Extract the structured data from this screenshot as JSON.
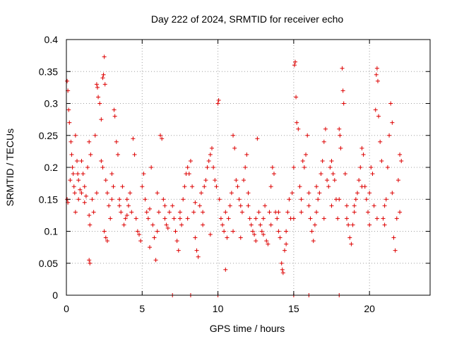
{
  "chart_data": {
    "type": "scatter",
    "title": "Day 222 of 2024, SRMTID for receiver echo",
    "xlabel": "GPS time / hours",
    "ylabel": "SRMTID / TECUs",
    "xlim": [
      0,
      24
    ],
    "ylim": [
      0,
      0.4
    ],
    "xticks": [
      0,
      5,
      10,
      15,
      20
    ],
    "xtick_labels": [
      "0",
      "5",
      "10",
      "15",
      "20"
    ],
    "yticks": [
      0,
      0.05,
      0.1,
      0.15,
      0.2,
      0.25,
      0.3,
      0.35,
      0.4
    ],
    "ytick_labels": [
      "0",
      "0.05",
      "0.1",
      "0.15",
      "0.2",
      "0.25",
      "0.3",
      "0.35",
      "0.4"
    ],
    "grid": true,
    "marker": "plus",
    "marker_color": "#dd0000",
    "series": [
      {
        "name": "echo",
        "points": [
          [
            0.05,
            0.335
          ],
          [
            0.1,
            0.32
          ],
          [
            0.15,
            0.29
          ],
          [
            0.2,
            0.27
          ],
          [
            0.05,
            0.15
          ],
          [
            0.1,
            0.145
          ],
          [
            0.3,
            0.24
          ],
          [
            0.35,
            0.22
          ],
          [
            0.4,
            0.2
          ],
          [
            0.25,
            0.18
          ],
          [
            0.45,
            0.19
          ],
          [
            0.5,
            0.17
          ],
          [
            0.55,
            0.16
          ],
          [
            0.6,
            0.25
          ],
          [
            0.7,
            0.21
          ],
          [
            0.75,
            0.19
          ],
          [
            0.8,
            0.18
          ],
          [
            0.9,
            0.165
          ],
          [
            1.0,
            0.21
          ],
          [
            1.1,
            0.19
          ],
          [
            1.2,
            0.17
          ],
          [
            1.3,
            0.155
          ],
          [
            1.4,
            0.2
          ],
          [
            1.5,
            0.24
          ],
          [
            1.6,
            0.22
          ],
          [
            1.5,
            0.125
          ],
          [
            1.55,
            0.11
          ],
          [
            1.5,
            0.055
          ],
          [
            1.55,
            0.05
          ],
          [
            1.7,
            0.15
          ],
          [
            1.8,
            0.13
          ],
          [
            1.9,
            0.25
          ],
          [
            2.0,
            0.33
          ],
          [
            2.05,
            0.325
          ],
          [
            2.1,
            0.31
          ],
          [
            2.2,
            0.3
          ],
          [
            2.3,
            0.275
          ],
          [
            2.4,
            0.34
          ],
          [
            2.45,
            0.345
          ],
          [
            2.5,
            0.373
          ],
          [
            2.55,
            0.33
          ],
          [
            2.3,
            0.21
          ],
          [
            2.4,
            0.2
          ],
          [
            2.6,
            0.18
          ],
          [
            2.7,
            0.16
          ],
          [
            2.8,
            0.14
          ],
          [
            2.9,
            0.12
          ],
          [
            2.5,
            0.1
          ],
          [
            2.6,
            0.09
          ],
          [
            2.7,
            0.085
          ],
          [
            3.0,
            0.19
          ],
          [
            3.1,
            0.17
          ],
          [
            3.15,
            0.29
          ],
          [
            3.2,
            0.28
          ],
          [
            3.3,
            0.24
          ],
          [
            3.4,
            0.22
          ],
          [
            3.5,
            0.15
          ],
          [
            3.6,
            0.13
          ],
          [
            3.7,
            0.17
          ],
          [
            3.8,
            0.11
          ],
          [
            3.9,
            0.12
          ],
          [
            4.0,
            0.15
          ],
          [
            4.1,
            0.14
          ],
          [
            4.2,
            0.16
          ],
          [
            4.3,
            0.13
          ],
          [
            4.4,
            0.245
          ],
          [
            4.5,
            0.22
          ],
          [
            4.6,
            0.12
          ],
          [
            4.7,
            0.1
          ],
          [
            4.8,
            0.095
          ],
          [
            4.9,
            0.085
          ],
          [
            5.0,
            0.17
          ],
          [
            5.1,
            0.19
          ],
          [
            5.2,
            0.15
          ],
          [
            5.3,
            0.13
          ],
          [
            5.4,
            0.12
          ],
          [
            5.5,
            0.075
          ],
          [
            5.6,
            0.2
          ],
          [
            5.7,
            0.11
          ],
          [
            5.8,
            0.09
          ],
          [
            5.9,
            0.055
          ],
          [
            6.0,
            0.16
          ],
          [
            6.1,
            0.13
          ],
          [
            6.2,
            0.25
          ],
          [
            6.3,
            0.245
          ],
          [
            6.4,
            0.15
          ],
          [
            6.5,
            0.12
          ],
          [
            6.6,
            0.11
          ],
          [
            6.7,
            0.105
          ],
          [
            6.8,
            0.13
          ],
          [
            7.0,
            0.14
          ],
          [
            7.1,
            0.12
          ],
          [
            7.2,
            0.1
          ],
          [
            7.3,
            0.085
          ],
          [
            7.4,
            0.07
          ],
          [
            7.5,
            0.12
          ],
          [
            7.6,
            0.11
          ],
          [
            7.7,
            0.15
          ],
          [
            7.8,
            0.17
          ],
          [
            7.9,
            0.19
          ],
          [
            8.0,
            0.2
          ],
          [
            8.1,
            0.19
          ],
          [
            8.2,
            0.21
          ],
          [
            8.3,
            0.17
          ],
          [
            8.4,
            0.13
          ],
          [
            8.5,
            0.09
          ],
          [
            8.6,
            0.07
          ],
          [
            8.7,
            0.06
          ],
          [
            8.8,
            0.14
          ],
          [
            8.9,
            0.16
          ],
          [
            9.0,
            0.13
          ],
          [
            9.1,
            0.17
          ],
          [
            9.2,
            0.18
          ],
          [
            9.3,
            0.2
          ],
          [
            9.4,
            0.21
          ],
          [
            9.5,
            0.22
          ],
          [
            9.6,
            0.23
          ],
          [
            9.7,
            0.2
          ],
          [
            9.8,
            0.18
          ],
          [
            9.9,
            0.17
          ],
          [
            10.0,
            0.3
          ],
          [
            10.05,
            0.305
          ],
          [
            10.1,
            0.15
          ],
          [
            10.2,
            0.12
          ],
          [
            10.3,
            0.11
          ],
          [
            10.4,
            0.1
          ],
          [
            10.5,
            0.04
          ],
          [
            10.6,
            0.09
          ],
          [
            10.7,
            0.12
          ],
          [
            10.8,
            0.14
          ],
          [
            10.9,
            0.16
          ],
          [
            11.0,
            0.25
          ],
          [
            11.1,
            0.23
          ],
          [
            11.2,
            0.18
          ],
          [
            11.3,
            0.17
          ],
          [
            11.4,
            0.15
          ],
          [
            11.5,
            0.14
          ],
          [
            11.6,
            0.13
          ],
          [
            11.7,
            0.18
          ],
          [
            11.8,
            0.2
          ],
          [
            11.9,
            0.22
          ],
          [
            12.0,
            0.16
          ],
          [
            12.1,
            0.12
          ],
          [
            12.2,
            0.11
          ],
          [
            12.3,
            0.1
          ],
          [
            12.4,
            0.095
          ],
          [
            12.5,
            0.12
          ],
          [
            12.6,
            0.245
          ],
          [
            12.7,
            0.13
          ],
          [
            12.8,
            0.11
          ],
          [
            12.9,
            0.1
          ],
          [
            13.0,
            0.12
          ],
          [
            13.1,
            0.14
          ],
          [
            13.2,
            0.085
          ],
          [
            13.3,
            0.08
          ],
          [
            13.4,
            0.13
          ],
          [
            13.5,
            0.17
          ],
          [
            13.6,
            0.2
          ],
          [
            13.7,
            0.19
          ],
          [
            13.8,
            0.13
          ],
          [
            13.9,
            0.12
          ],
          [
            14.0,
            0.1
          ],
          [
            14.1,
            0.09
          ],
          [
            14.2,
            0.05
          ],
          [
            14.25,
            0.04
          ],
          [
            14.3,
            0.035
          ],
          [
            14.4,
            0.07
          ],
          [
            14.5,
            0.1
          ],
          [
            14.6,
            0.13
          ],
          [
            14.7,
            0.15
          ],
          [
            14.8,
            0.12
          ],
          [
            14.9,
            0.16
          ],
          [
            15.0,
            0.2
          ],
          [
            15.05,
            0.36
          ],
          [
            15.1,
            0.365
          ],
          [
            15.15,
            0.31
          ],
          [
            15.2,
            0.27
          ],
          [
            15.3,
            0.26
          ],
          [
            15.4,
            0.17
          ],
          [
            15.5,
            0.15
          ],
          [
            15.6,
            0.21
          ],
          [
            15.7,
            0.2
          ],
          [
            15.8,
            0.22
          ],
          [
            15.9,
            0.25
          ],
          [
            16.0,
            0.16
          ],
          [
            16.1,
            0.12
          ],
          [
            16.2,
            0.1
          ],
          [
            16.3,
            0.085
          ],
          [
            16.4,
            0.11
          ],
          [
            16.5,
            0.13
          ],
          [
            16.6,
            0.15
          ],
          [
            16.7,
            0.16
          ],
          [
            16.8,
            0.19
          ],
          [
            16.9,
            0.21
          ],
          [
            17.0,
            0.24
          ],
          [
            17.1,
            0.26
          ],
          [
            17.2,
            0.18
          ],
          [
            17.3,
            0.17
          ],
          [
            17.4,
            0.2
          ],
          [
            17.5,
            0.21
          ],
          [
            17.6,
            0.19
          ],
          [
            17.7,
            0.18
          ],
          [
            17.8,
            0.15
          ],
          [
            17.9,
            0.12
          ],
          [
            18.0,
            0.26
          ],
          [
            18.05,
            0.25
          ],
          [
            18.1,
            0.23
          ],
          [
            18.2,
            0.355
          ],
          [
            18.25,
            0.32
          ],
          [
            18.3,
            0.3
          ],
          [
            18.4,
            0.19
          ],
          [
            18.5,
            0.14
          ],
          [
            18.6,
            0.11
          ],
          [
            18.7,
            0.09
          ],
          [
            18.8,
            0.08
          ],
          [
            18.9,
            0.11
          ],
          [
            19.0,
            0.13
          ],
          [
            19.1,
            0.15
          ],
          [
            19.2,
            0.16
          ],
          [
            19.3,
            0.18
          ],
          [
            19.4,
            0.2
          ],
          [
            19.5,
            0.23
          ],
          [
            19.6,
            0.22
          ],
          [
            19.7,
            0.17
          ],
          [
            19.8,
            0.15
          ],
          [
            19.9,
            0.13
          ],
          [
            20.0,
            0.11
          ],
          [
            20.1,
            0.2
          ],
          [
            20.2,
            0.19
          ],
          [
            20.3,
            0.14
          ],
          [
            20.4,
            0.29
          ],
          [
            20.45,
            0.345
          ],
          [
            20.5,
            0.355
          ],
          [
            20.55,
            0.335
          ],
          [
            20.6,
            0.28
          ],
          [
            20.7,
            0.24
          ],
          [
            20.8,
            0.21
          ],
          [
            20.9,
            0.12
          ],
          [
            21.0,
            0.11
          ],
          [
            21.1,
            0.15
          ],
          [
            21.2,
            0.2
          ],
          [
            21.3,
            0.25
          ],
          [
            21.4,
            0.3
          ],
          [
            21.5,
            0.27
          ],
          [
            21.6,
            0.09
          ],
          [
            21.7,
            0.07
          ],
          [
            21.8,
            0.12
          ],
          [
            21.9,
            0.18
          ],
          [
            22.0,
            0.22
          ],
          [
            22.1,
            0.21
          ],
          [
            0.6,
            0.13
          ],
          [
            0.8,
            0.15
          ],
          [
            1.2,
            0.145
          ],
          [
            2.0,
            0.16
          ],
          [
            3.5,
            0.14
          ],
          [
            4.0,
            0.125
          ],
          [
            5.5,
            0.135
          ],
          [
            6.5,
            0.14
          ],
          [
            7.5,
            0.13
          ],
          [
            8.5,
            0.145
          ],
          [
            9.0,
            0.11
          ],
          [
            9.5,
            0.095
          ],
          [
            10.5,
            0.13
          ],
          [
            11.0,
            0.1
          ],
          [
            11.5,
            0.09
          ],
          [
            12.0,
            0.14
          ],
          [
            12.5,
            0.085
          ],
          [
            13.0,
            0.095
          ],
          [
            13.5,
            0.11
          ],
          [
            14.0,
            0.13
          ],
          [
            14.5,
            0.08
          ],
          [
            15.0,
            0.12
          ],
          [
            15.5,
            0.13
          ],
          [
            16.0,
            0.14
          ],
          [
            16.5,
            0.17
          ],
          [
            17.0,
            0.12
          ],
          [
            17.5,
            0.14
          ],
          [
            18.0,
            0.15
          ],
          [
            18.5,
            0.12
          ],
          [
            19.0,
            0.14
          ],
          [
            19.5,
            0.17
          ],
          [
            20.0,
            0.16
          ],
          [
            20.5,
            0.12
          ],
          [
            21.0,
            0.14
          ],
          [
            21.5,
            0.16
          ],
          [
            22.0,
            0.13
          ],
          [
            1.0,
            0.16
          ],
          [
            3.0,
            0.15
          ],
          [
            6.0,
            0.1
          ],
          [
            8.0,
            0.12
          ],
          [
            7.0,
            0
          ],
          [
            8.2,
            0
          ],
          [
            10.0,
            0
          ],
          [
            15.0,
            0
          ],
          [
            16.0,
            0
          ],
          [
            18.0,
            0
          ]
        ]
      }
    ]
  }
}
